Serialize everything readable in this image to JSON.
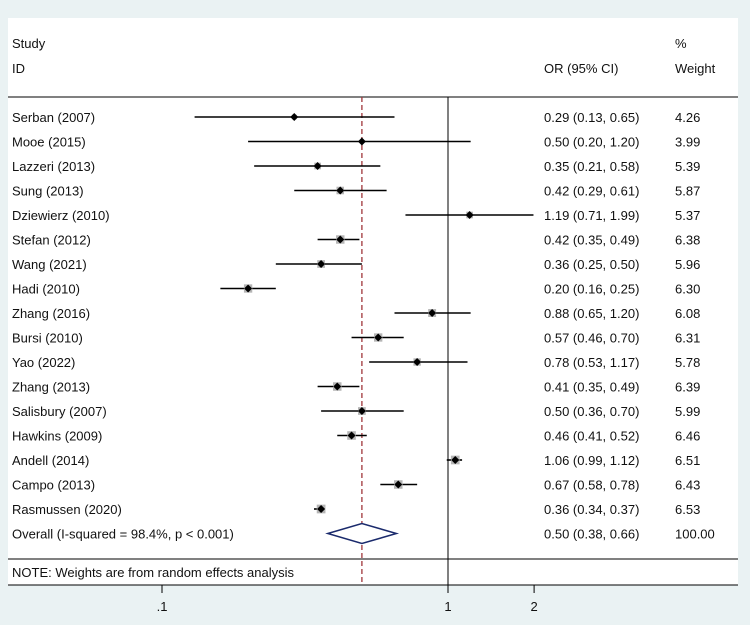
{
  "chart_data": {
    "type": "forest",
    "scale": "log",
    "header": {
      "study_col1": "Study",
      "study_col2": "ID",
      "or_col": "OR (95% CI)",
      "weight_col1": "%",
      "weight_col2": "Weight"
    },
    "studies": [
      {
        "label": "Serban (2007)",
        "or": 0.29,
        "lo": 0.13,
        "hi": 0.65,
        "or_text": "0.29 (0.13, 0.65)",
        "weight": "4.26"
      },
      {
        "label": "Mooe (2015)",
        "or": 0.5,
        "lo": 0.2,
        "hi": 1.2,
        "or_text": "0.50 (0.20, 1.20)",
        "weight": "3.99"
      },
      {
        "label": "Lazzeri (2013)",
        "or": 0.35,
        "lo": 0.21,
        "hi": 0.58,
        "or_text": "0.35 (0.21, 0.58)",
        "weight": "5.39"
      },
      {
        "label": "Sung  (2013)",
        "or": 0.42,
        "lo": 0.29,
        "hi": 0.61,
        "or_text": "0.42 (0.29, 0.61)",
        "weight": "5.87"
      },
      {
        "label": "Dziewierz  (2010)",
        "or": 1.19,
        "lo": 0.71,
        "hi": 1.99,
        "or_text": "1.19 (0.71, 1.99)",
        "weight": "5.37"
      },
      {
        "label": "Stefan (2012)",
        "or": 0.42,
        "lo": 0.35,
        "hi": 0.49,
        "or_text": "0.42 (0.35, 0.49)",
        "weight": "6.38"
      },
      {
        "label": "Wang  (2021)",
        "or": 0.36,
        "lo": 0.25,
        "hi": 0.5,
        "or_text": "0.36 (0.25, 0.50)",
        "weight": "5.96"
      },
      {
        "label": "Hadi (2010)",
        "or": 0.2,
        "lo": 0.16,
        "hi": 0.25,
        "or_text": "0.20 (0.16, 0.25)",
        "weight": "6.30"
      },
      {
        "label": "Zhang (2016)",
        "or": 0.88,
        "lo": 0.65,
        "hi": 1.2,
        "or_text": "0.88 (0.65, 1.20)",
        "weight": "6.08"
      },
      {
        "label": "Bursi (2010)",
        "or": 0.57,
        "lo": 0.46,
        "hi": 0.7,
        "or_text": "0.57 (0.46, 0.70)",
        "weight": "6.31"
      },
      {
        "label": "Yao (2022)",
        "or": 0.78,
        "lo": 0.53,
        "hi": 1.17,
        "or_text": "0.78 (0.53, 1.17)",
        "weight": "5.78"
      },
      {
        "label": "Zhang (2013)",
        "or": 0.41,
        "lo": 0.35,
        "hi": 0.49,
        "or_text": "0.41 (0.35, 0.49)",
        "weight": "6.39"
      },
      {
        "label": "Salisbury (2007)",
        "or": 0.5,
        "lo": 0.36,
        "hi": 0.7,
        "or_text": "0.50 (0.36, 0.70)",
        "weight": "5.99"
      },
      {
        "label": "Hawkins (2009)",
        "or": 0.46,
        "lo": 0.41,
        "hi": 0.52,
        "or_text": "0.46 (0.41, 0.52)",
        "weight": "6.46"
      },
      {
        "label": "Andell (2014)",
        "or": 1.06,
        "lo": 0.99,
        "hi": 1.12,
        "or_text": "1.06 (0.99, 1.12)",
        "weight": "6.51"
      },
      {
        "label": "Campo  (2013)",
        "or": 0.67,
        "lo": 0.58,
        "hi": 0.78,
        "or_text": "0.67 (0.58, 0.78)",
        "weight": "6.43"
      },
      {
        "label": "Rasmussen (2020)",
        "or": 0.36,
        "lo": 0.34,
        "hi": 0.37,
        "or_text": "0.36 (0.34, 0.37)",
        "weight": "6.53"
      }
    ],
    "overall": {
      "label": "Overall  (I-squared = 98.4%, p < 0.001)",
      "or": 0.5,
      "lo": 0.38,
      "hi": 0.66,
      "or_text": "0.50 (0.38, 0.66)",
      "weight": "100.00"
    },
    "note": "NOTE: Weights are from random effects analysis",
    "x_ticks": [
      {
        "value": 0.1,
        "label": ".1"
      },
      {
        "value": 1,
        "label": "1"
      },
      {
        "value": 2,
        "label": "2"
      }
    ],
    "null_line": 1,
    "colors": {
      "ci_line": "#000000",
      "marker": "#000000",
      "weight_box": "#b5b5b5",
      "overall_diamond": "#1a2a6c",
      "overall_line": "#a0363a"
    }
  }
}
